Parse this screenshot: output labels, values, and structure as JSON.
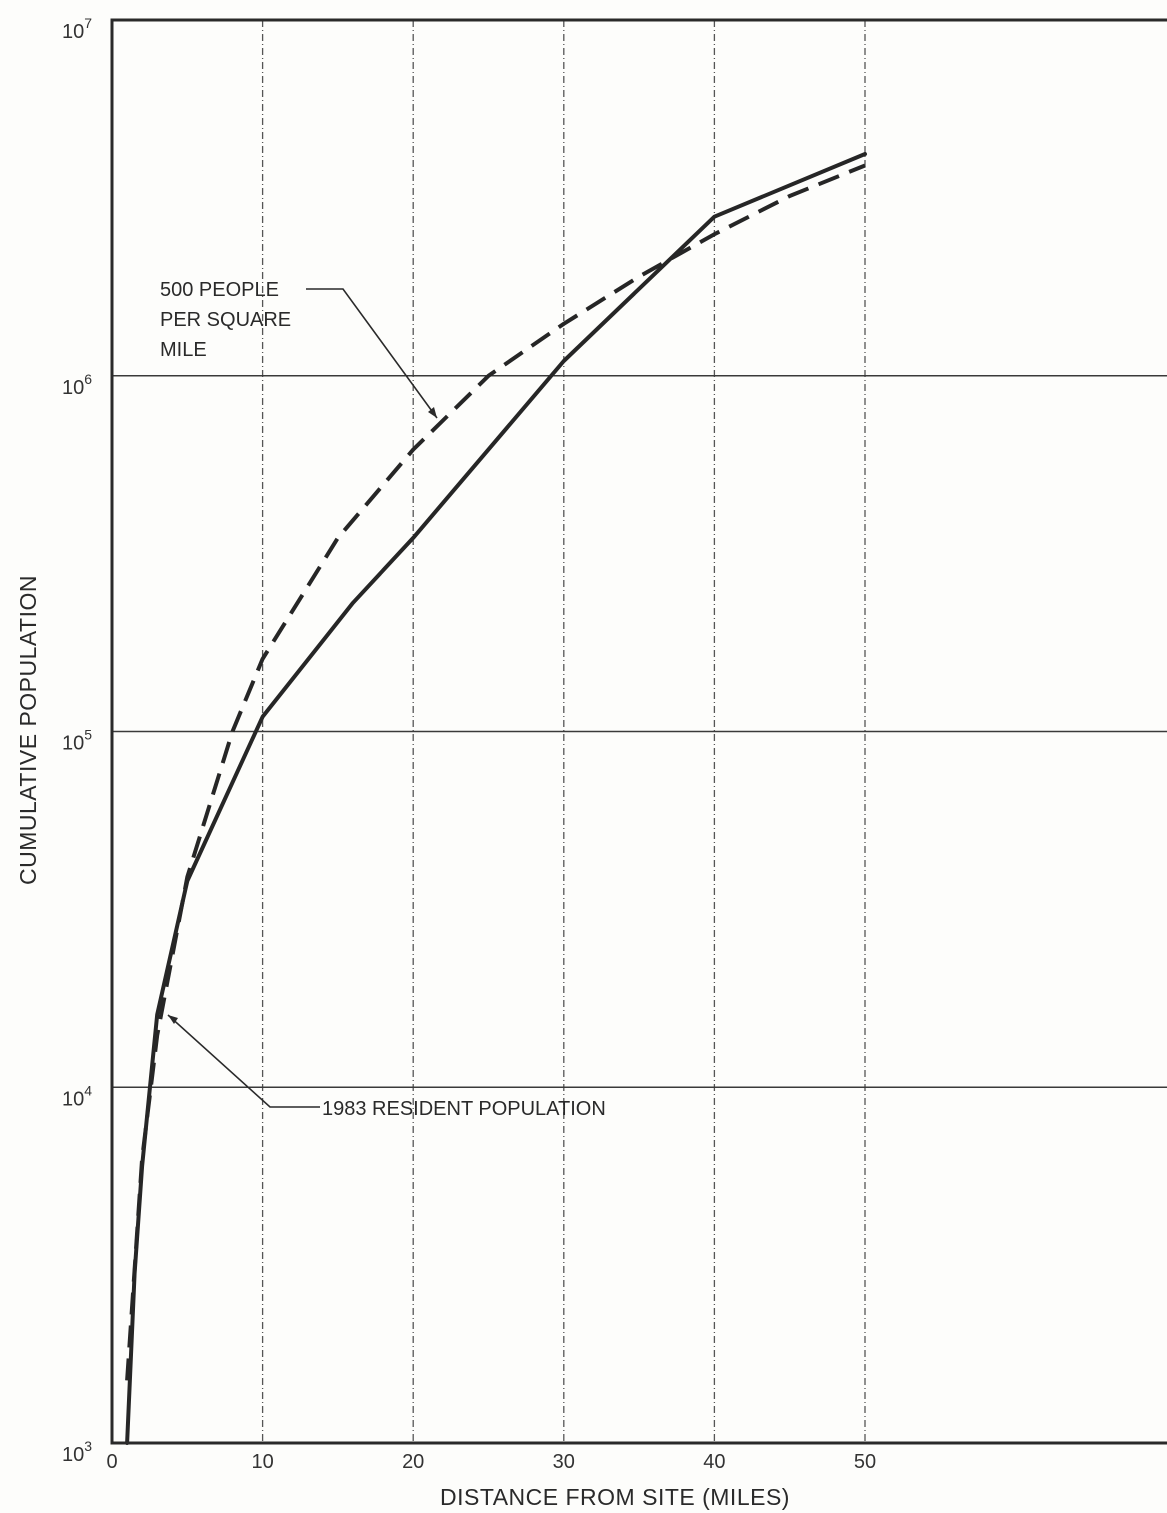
{
  "chart_data": {
    "type": "line",
    "title": "",
    "xlabel": "DISTANCE FROM SITE (MILES)",
    "ylabel": "CUMULATIVE POPULATION",
    "x_scale": "linear",
    "y_scale": "log",
    "xlim": [
      0,
      50
    ],
    "ylim": [
      1000,
      10000000
    ],
    "x_ticks": [
      {
        "value": 0,
        "label": "0"
      },
      {
        "value": 10,
        "label": "10"
      },
      {
        "value": 20,
        "label": "20"
      },
      {
        "value": 30,
        "label": "30"
      },
      {
        "value": 40,
        "label": "40"
      },
      {
        "value": 50,
        "label": "50"
      }
    ],
    "y_ticks": [
      {
        "value": 1000,
        "base": "10",
        "exp": "3"
      },
      {
        "value": 10000,
        "base": "10",
        "exp": "4"
      },
      {
        "value": 100000,
        "base": "10",
        "exp": "5"
      },
      {
        "value": 1000000,
        "base": "10",
        "exp": "6"
      },
      {
        "value": 10000000,
        "base": "10",
        "exp": "7"
      }
    ],
    "grid": true,
    "series": [
      {
        "name": "1983 RESIDENT POPULATION",
        "style": "solid",
        "x": [
          1,
          1.5,
          2,
          3,
          5,
          10,
          16,
          20,
          30,
          40,
          50
        ],
        "y": [
          1000,
          3000,
          6000,
          16000,
          38000,
          110000,
          230000,
          350000,
          1100000,
          2800000,
          4200000
        ]
      },
      {
        "name": "500 PEOPLE PER SQUARE MILE",
        "style": "dashed",
        "x": [
          1,
          2,
          3,
          5,
          8,
          10,
          15,
          20,
          25,
          30,
          35,
          40,
          45,
          50
        ],
        "y": [
          1500,
          6300,
          14000,
          39000,
          100000,
          160000,
          350000,
          620000,
          1000000,
          1400000,
          1900000,
          2500000,
          3200000,
          3900000
        ]
      }
    ]
  }
}
